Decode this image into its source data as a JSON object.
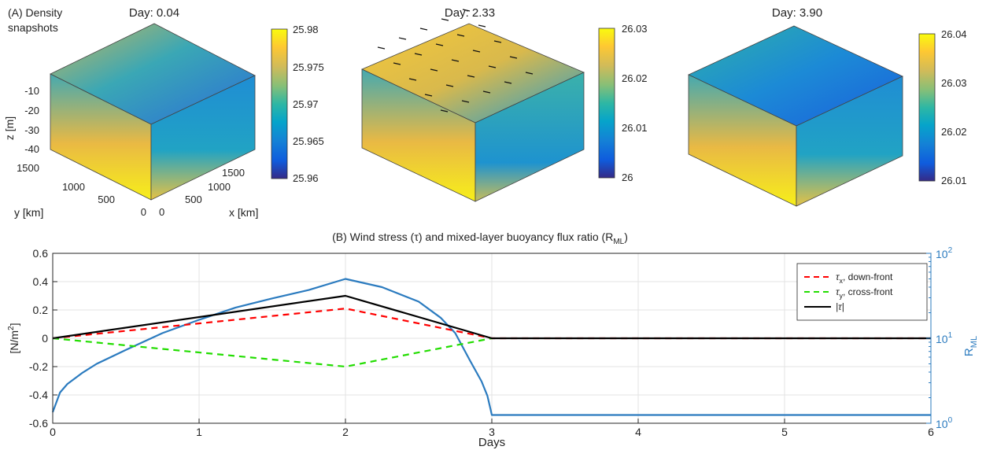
{
  "panel_a": {
    "label": "(A) Density",
    "label2": "snapshots",
    "snapshots": [
      {
        "title": "Day: 0.04",
        "cbar_ticks": [
          "25.98",
          "25.975",
          "25.97",
          "25.965",
          "25.96"
        ],
        "clim": [
          25.96,
          25.98
        ]
      },
      {
        "title": "Day: 2.33",
        "cbar_ticks": [
          "26.03",
          "26.02",
          "26.01",
          "26"
        ],
        "clim": [
          26.0,
          26.03
        ]
      },
      {
        "title": "Day: 3.90",
        "cbar_ticks": [
          "26.04",
          "26.03",
          "26.02",
          "26.01"
        ],
        "clim": [
          26.01,
          26.04
        ]
      }
    ],
    "z_label": "z [m]",
    "z_ticks": [
      "-10",
      "-20",
      "-30",
      "-40"
    ],
    "y_label": "y [km]",
    "y_ticks": [
      "1500",
      "1000",
      "500",
      "0"
    ],
    "x_label": "x [km]",
    "x_ticks": [
      "0",
      "500",
      "1000",
      "1500"
    ]
  },
  "chart_data": {
    "type": "line",
    "title": "(B) Wind stress (τ) and mixed-layer buoyancy flux ratio (R",
    "title_sub": "ML",
    "title_end": ")",
    "xlabel": "Days",
    "ylabel": "[N/m",
    "ylabel_sup": "2",
    "ylabel_end": "]",
    "ylabel_right": "R",
    "ylabel_right_sub": "ML",
    "xlim": [
      0,
      6
    ],
    "ylim": [
      -0.6,
      0.6
    ],
    "ylim_right_log": [
      1,
      100
    ],
    "x_ticks": [
      "0",
      "1",
      "2",
      "3",
      "4",
      "5",
      "6"
    ],
    "y_ticks": [
      "0.6",
      "0.4",
      "0.2",
      "0",
      "-0.2",
      "-0.4",
      "-0.6"
    ],
    "y_right_ticks": [
      {
        "base": "10",
        "exp": "2"
      },
      {
        "base": "10",
        "exp": "1"
      },
      {
        "base": "10",
        "exp": "0"
      }
    ],
    "grid": true,
    "legend_position": "top-right",
    "series": [
      {
        "name": "τx, down-front",
        "legend_sym": "τ",
        "legend_sub": "x",
        "legend_rest": ", down-front",
        "color": "#ff0000",
        "style": "dashed",
        "axis": "left",
        "x": [
          0,
          2,
          3,
          6
        ],
        "y": [
          0,
          0.21,
          0,
          0
        ]
      },
      {
        "name": "τy, cross-front",
        "legend_sym": "τ",
        "legend_sub": "y",
        "legend_rest": ", cross-front",
        "color": "#22dd00",
        "style": "dashed",
        "axis": "left",
        "x": [
          0,
          2,
          3
        ],
        "y": [
          0,
          -0.2,
          0
        ]
      },
      {
        "name": "|τ|",
        "legend_sym": "|τ|",
        "legend_sub": "",
        "legend_rest": "",
        "color": "#000000",
        "style": "solid",
        "axis": "left",
        "x": [
          0,
          2,
          3,
          6
        ],
        "y": [
          0,
          0.3,
          0,
          0
        ]
      },
      {
        "name": "RML",
        "color": "#2b7bbf",
        "style": "solid",
        "axis": "right",
        "x": [
          0,
          0.05,
          0.1,
          0.2,
          0.3,
          0.5,
          0.75,
          1.0,
          1.25,
          1.5,
          1.75,
          2.0,
          2.25,
          2.5,
          2.65,
          2.75,
          2.85,
          2.93,
          2.97,
          2.99,
          3.0,
          3.05,
          4,
          5,
          6
        ],
        "y": [
          1.35,
          2.3,
          2.9,
          3.9,
          5.0,
          7.3,
          11.5,
          16.5,
          23,
          29.5,
          37,
          50,
          40,
          27,
          17.5,
          11.5,
          5.5,
          3.1,
          2.1,
          1.5,
          1.25,
          1.25,
          1.25,
          1.25,
          1.25
        ]
      }
    ]
  }
}
